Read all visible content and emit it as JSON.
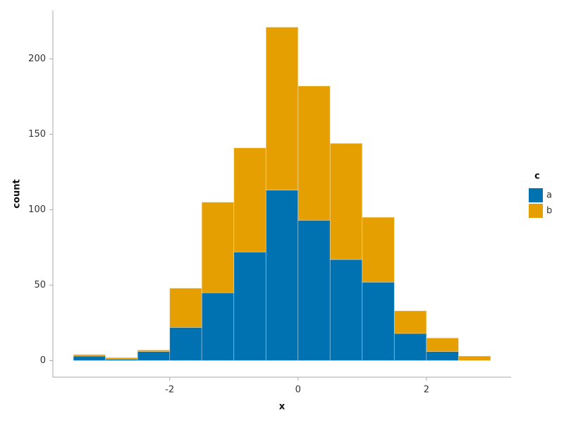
{
  "chart_data": {
    "type": "histogram",
    "x_label": "x",
    "y_label": "count",
    "legend_title": "c",
    "bins": [
      -3.5,
      -3.0,
      -2.5,
      -2.0,
      -1.5,
      -1.0,
      -0.5,
      0.0,
      0.5,
      1.0,
      1.5,
      2.0,
      2.5,
      3.0
    ],
    "series": [
      {
        "name": "a",
        "color": "#0072b2",
        "values": [
          3,
          1,
          6,
          22,
          45,
          72,
          113,
          93,
          67,
          52,
          18,
          6,
          0
        ]
      },
      {
        "name": "b",
        "color": "#e69f00",
        "values": [
          1,
          1,
          1,
          26,
          60,
          69,
          108,
          89,
          77,
          43,
          15,
          9,
          3
        ]
      }
    ],
    "stacked": true,
    "xlim": [
      -3.82,
      3.32
    ],
    "ylim": [
      -11,
      232
    ],
    "xticks": [
      -2,
      0,
      2
    ],
    "yticks": [
      0,
      50,
      100,
      150,
      200
    ],
    "grid": false,
    "legend_position": "right"
  }
}
